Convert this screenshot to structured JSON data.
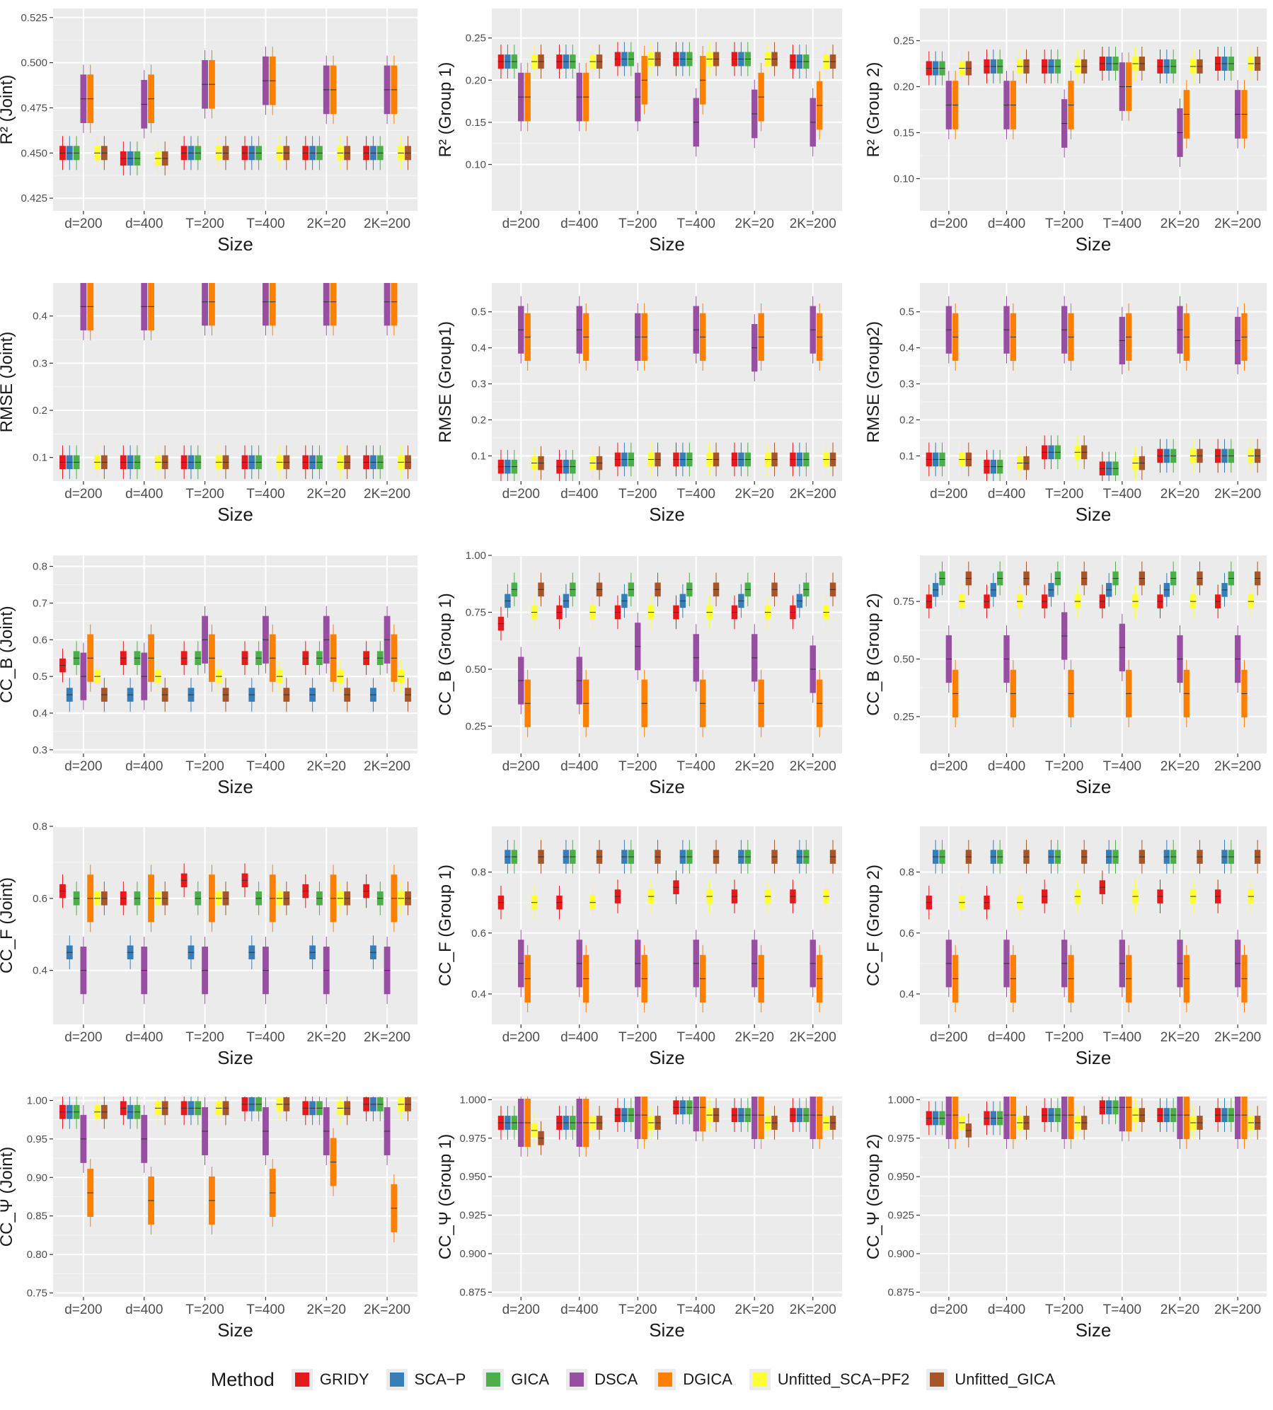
{
  "method_title": "Method",
  "methods": [
    {
      "name": "GRIDY",
      "color": "#e41a1c"
    },
    {
      "name": "SCA−P",
      "color": "#377eb8"
    },
    {
      "name": "GICA",
      "color": "#4daf4a"
    },
    {
      "name": "DSCA",
      "color": "#984ea3"
    },
    {
      "name": "DGICA",
      "color": "#ff7f00"
    },
    {
      "name": "Unfitted_SCA−PF2",
      "color": "#ffff33"
    },
    {
      "name": "Unfitted_GICA",
      "color": "#a65628"
    }
  ],
  "chart_data": [
    {
      "type": "box",
      "ylabel": "R² (Joint)",
      "xlabel": "Size",
      "categories": [
        "d=200",
        "d=400",
        "T=200",
        "T=400",
        "2K=20",
        "2K=200"
      ],
      "ylim": [
        0.418,
        0.53
      ],
      "yticks": [
        0.425,
        0.45,
        0.475,
        0.5,
        0.525
      ],
      "ytick_labels": [
        "0.425",
        "0.450",
        "0.475",
        "0.500",
        "0.525"
      ],
      "medians": [
        [
          0.45,
          0.45,
          0.45,
          0.48,
          0.48,
          0.45,
          0.45
        ],
        [
          0.447,
          0.447,
          0.447,
          0.477,
          0.48,
          0.447,
          0.447
        ],
        [
          0.45,
          0.45,
          0.45,
          0.488,
          0.488,
          0.45,
          0.45
        ],
        [
          0.45,
          0.45,
          0.45,
          0.49,
          0.49,
          0.45,
          0.45
        ],
        [
          0.45,
          0.45,
          0.45,
          0.485,
          0.485,
          0.45,
          0.45
        ],
        [
          0.45,
          0.45,
          0.45,
          0.485,
          0.485,
          0.45,
          0.45
        ]
      ]
    },
    {
      "type": "box",
      "ylabel": "R² (Group 1)",
      "xlabel": "Size",
      "categories": [
        "d=200",
        "d=400",
        "T=200",
        "T=400",
        "2K=20",
        "2K=200"
      ],
      "ylim": [
        0.045,
        0.285
      ],
      "yticks": [
        0.1,
        0.15,
        0.2,
        0.25
      ],
      "ytick_labels": [
        "0.10",
        "0.15",
        "0.20",
        "0.25"
      ],
      "medians": [
        [
          0.222,
          0.222,
          0.222,
          0.18,
          0.18,
          0.222,
          0.222
        ],
        [
          0.222,
          0.222,
          0.222,
          0.18,
          0.18,
          0.222,
          0.222
        ],
        [
          0.225,
          0.225,
          0.225,
          0.18,
          0.2,
          0.225,
          0.225
        ],
        [
          0.225,
          0.225,
          0.225,
          0.15,
          0.2,
          0.225,
          0.225
        ],
        [
          0.225,
          0.225,
          0.225,
          0.16,
          0.18,
          0.225,
          0.225
        ],
        [
          0.222,
          0.222,
          0.222,
          0.15,
          0.17,
          0.222,
          0.222
        ]
      ]
    },
    {
      "type": "box",
      "ylabel": "R² (Group 2)",
      "xlabel": "Size",
      "categories": [
        "d=200",
        "d=400",
        "T=200",
        "T=400",
        "2K=20",
        "2K=200"
      ],
      "ylim": [
        0.065,
        0.285
      ],
      "yticks": [
        0.1,
        0.15,
        0.2,
        0.25
      ],
      "ytick_labels": [
        "0.10",
        "0.15",
        "0.20",
        "0.25"
      ],
      "medians": [
        [
          0.22,
          0.22,
          0.22,
          0.18,
          0.18,
          0.22,
          0.22
        ],
        [
          0.222,
          0.222,
          0.222,
          0.18,
          0.18,
          0.222,
          0.222
        ],
        [
          0.222,
          0.222,
          0.222,
          0.16,
          0.18,
          0.222,
          0.222
        ],
        [
          0.225,
          0.225,
          0.225,
          0.2,
          0.2,
          0.225,
          0.225
        ],
        [
          0.222,
          0.222,
          0.222,
          0.15,
          0.17,
          0.222,
          0.222
        ],
        [
          0.225,
          0.225,
          0.225,
          0.17,
          0.17,
          0.225,
          0.225
        ]
      ]
    },
    {
      "type": "box",
      "ylabel": "RMSE (Joint)",
      "xlabel": "Size",
      "categories": [
        "d=200",
        "d=400",
        "T=200",
        "T=400",
        "2K=20",
        "2K=200"
      ],
      "ylim": [
        0.05,
        0.47
      ],
      "yticks": [
        0.1,
        0.2,
        0.3,
        0.4
      ],
      "ytick_labels": [
        "0.1",
        "0.2",
        "0.3",
        "0.4"
      ],
      "medians": [
        [
          0.09,
          0.09,
          0.09,
          0.42,
          0.42,
          0.09,
          0.09
        ],
        [
          0.09,
          0.09,
          0.09,
          0.42,
          0.42,
          0.09,
          0.09
        ],
        [
          0.09,
          0.09,
          0.09,
          0.43,
          0.43,
          0.09,
          0.09
        ],
        [
          0.09,
          0.09,
          0.09,
          0.43,
          0.43,
          0.09,
          0.09
        ],
        [
          0.09,
          0.09,
          0.09,
          0.43,
          0.43,
          0.09,
          0.09
        ],
        [
          0.09,
          0.09,
          0.09,
          0.43,
          0.43,
          0.09,
          0.09
        ]
      ]
    },
    {
      "type": "box",
      "ylabel": "RMSE (Group1)",
      "xlabel": "Size",
      "categories": [
        "d=200",
        "d=400",
        "T=200",
        "T=400",
        "2K=20",
        "2K=200"
      ],
      "ylim": [
        0.03,
        0.58
      ],
      "yticks": [
        0.1,
        0.2,
        0.3,
        0.4,
        0.5
      ],
      "ytick_labels": [
        "0.1",
        "0.2",
        "0.3",
        "0.4",
        "0.5"
      ],
      "medians": [
        [
          0.07,
          0.07,
          0.07,
          0.45,
          0.43,
          0.08,
          0.08
        ],
        [
          0.07,
          0.07,
          0.07,
          0.45,
          0.43,
          0.08,
          0.08
        ],
        [
          0.09,
          0.09,
          0.09,
          0.43,
          0.43,
          0.09,
          0.09
        ],
        [
          0.09,
          0.09,
          0.09,
          0.45,
          0.43,
          0.09,
          0.09
        ],
        [
          0.09,
          0.09,
          0.09,
          0.4,
          0.43,
          0.09,
          0.09
        ],
        [
          0.09,
          0.09,
          0.09,
          0.45,
          0.43,
          0.09,
          0.09
        ]
      ]
    },
    {
      "type": "box",
      "ylabel": "RMSE (Group2)",
      "xlabel": "Size",
      "categories": [
        "d=200",
        "d=400",
        "T=200",
        "T=400",
        "2K=20",
        "2K=200"
      ],
      "ylim": [
        0.03,
        0.58
      ],
      "yticks": [
        0.1,
        0.2,
        0.3,
        0.4,
        0.5
      ],
      "ytick_labels": [
        "0.1",
        "0.2",
        "0.3",
        "0.4",
        "0.5"
      ],
      "medians": [
        [
          0.09,
          0.09,
          0.09,
          0.45,
          0.43,
          0.09,
          0.09
        ],
        [
          0.07,
          0.07,
          0.07,
          0.45,
          0.43,
          0.08,
          0.08
        ],
        [
          0.11,
          0.11,
          0.11,
          0.45,
          0.43,
          0.11,
          0.11
        ],
        [
          0.065,
          0.065,
          0.065,
          0.42,
          0.43,
          0.08,
          0.08
        ],
        [
          0.1,
          0.1,
          0.1,
          0.45,
          0.43,
          0.1,
          0.1
        ],
        [
          0.1,
          0.1,
          0.1,
          0.42,
          0.43,
          0.1,
          0.1
        ]
      ]
    },
    {
      "type": "box",
      "ylabel": "CC_B (Joint)",
      "xlabel": "Size",
      "categories": [
        "d=200",
        "d=400",
        "T=200",
        "T=400",
        "2K=20",
        "2K=200"
      ],
      "ylim": [
        0.29,
        0.83
      ],
      "yticks": [
        0.3,
        0.4,
        0.5,
        0.6,
        0.7,
        0.8
      ],
      "ytick_labels": [
        "0.3",
        "0.4",
        "0.5",
        "0.6",
        "0.7",
        "0.8"
      ],
      "medians": [
        [
          0.53,
          0.45,
          0.55,
          0.5,
          0.55,
          0.5,
          0.45
        ],
        [
          0.55,
          0.45,
          0.55,
          0.5,
          0.55,
          0.5,
          0.45
        ],
        [
          0.55,
          0.45,
          0.55,
          0.6,
          0.55,
          0.5,
          0.45
        ],
        [
          0.55,
          0.45,
          0.55,
          0.6,
          0.55,
          0.5,
          0.45
        ],
        [
          0.55,
          0.45,
          0.55,
          0.6,
          0.55,
          0.5,
          0.45
        ],
        [
          0.55,
          0.45,
          0.55,
          0.6,
          0.55,
          0.5,
          0.45
        ]
      ]
    },
    {
      "type": "box",
      "ylabel": "CC_B (Group 1)",
      "xlabel": "Size",
      "categories": [
        "d=200",
        "d=400",
        "T=200",
        "T=400",
        "2K=20",
        "2K=200"
      ],
      "ylim": [
        0.13,
        1.0
      ],
      "yticks": [
        0.25,
        0.5,
        0.75,
        1.0
      ],
      "ytick_labels": [
        "0.25",
        "0.50",
        "0.75",
        "1.00"
      ],
      "medians": [
        [
          0.7,
          0.8,
          0.85,
          0.45,
          0.35,
          0.75,
          0.85
        ],
        [
          0.75,
          0.8,
          0.85,
          0.45,
          0.35,
          0.75,
          0.85
        ],
        [
          0.75,
          0.8,
          0.85,
          0.6,
          0.35,
          0.75,
          0.85
        ],
        [
          0.75,
          0.8,
          0.85,
          0.55,
          0.35,
          0.75,
          0.85
        ],
        [
          0.75,
          0.8,
          0.85,
          0.55,
          0.35,
          0.75,
          0.85
        ],
        [
          0.75,
          0.8,
          0.85,
          0.5,
          0.35,
          0.75,
          0.85
        ]
      ]
    },
    {
      "type": "box",
      "ylabel": "CC_B (Group 2)",
      "xlabel": "Size",
      "categories": [
        "d=200",
        "d=400",
        "T=200",
        "T=400",
        "2K=20",
        "2K=200"
      ],
      "ylim": [
        0.09,
        0.95
      ],
      "yticks": [
        0.25,
        0.5,
        0.75
      ],
      "ytick_labels": [
        "0.25",
        "0.50",
        "0.75"
      ],
      "medians": [
        [
          0.75,
          0.8,
          0.85,
          0.5,
          0.35,
          0.75,
          0.85
        ],
        [
          0.75,
          0.8,
          0.85,
          0.5,
          0.35,
          0.75,
          0.85
        ],
        [
          0.75,
          0.8,
          0.85,
          0.6,
          0.35,
          0.75,
          0.85
        ],
        [
          0.75,
          0.8,
          0.85,
          0.55,
          0.35,
          0.75,
          0.85
        ],
        [
          0.75,
          0.8,
          0.85,
          0.5,
          0.35,
          0.75,
          0.85
        ],
        [
          0.75,
          0.8,
          0.85,
          0.5,
          0.35,
          0.75,
          0.85
        ]
      ]
    },
    {
      "type": "box",
      "ylabel": "CC_F (Joint)",
      "xlabel": "Size",
      "categories": [
        "d=200",
        "d=400",
        "T=200",
        "T=400",
        "2K=20",
        "2K=200"
      ],
      "ylim": [
        0.25,
        0.8
      ],
      "yticks": [
        0.4,
        0.6,
        0.8
      ],
      "ytick_labels": [
        "0.4",
        "0.6",
        "0.8"
      ],
      "medians": [
        [
          0.62,
          0.45,
          0.6,
          0.4,
          0.6,
          0.6,
          0.6
        ],
        [
          0.6,
          0.45,
          0.6,
          0.4,
          0.6,
          0.6,
          0.6
        ],
        [
          0.65,
          0.45,
          0.6,
          0.4,
          0.6,
          0.6,
          0.6
        ],
        [
          0.65,
          0.45,
          0.6,
          0.4,
          0.6,
          0.6,
          0.6
        ],
        [
          0.62,
          0.45,
          0.6,
          0.4,
          0.6,
          0.6,
          0.6
        ],
        [
          0.62,
          0.45,
          0.6,
          0.4,
          0.6,
          0.6,
          0.6
        ]
      ]
    },
    {
      "type": "box",
      "ylabel": "CC_F (Group 1)",
      "xlabel": "Size",
      "categories": [
        "d=200",
        "d=400",
        "T=200",
        "T=400",
        "2K=20",
        "2K=200"
      ],
      "ylim": [
        0.3,
        0.95
      ],
      "yticks": [
        0.4,
        0.6,
        0.8
      ],
      "ytick_labels": [
        "0.4",
        "0.6",
        "0.8"
      ],
      "medians": [
        [
          0.7,
          0.85,
          0.85,
          0.5,
          0.45,
          0.7,
          0.85
        ],
        [
          0.7,
          0.85,
          0.85,
          0.5,
          0.45,
          0.7,
          0.85
        ],
        [
          0.72,
          0.85,
          0.85,
          0.5,
          0.45,
          0.72,
          0.85
        ],
        [
          0.75,
          0.85,
          0.85,
          0.5,
          0.45,
          0.72,
          0.85
        ],
        [
          0.72,
          0.85,
          0.85,
          0.5,
          0.45,
          0.72,
          0.85
        ],
        [
          0.72,
          0.85,
          0.85,
          0.5,
          0.45,
          0.72,
          0.85
        ]
      ]
    },
    {
      "type": "box",
      "ylabel": "CC_F (Group 2)",
      "xlabel": "Size",
      "categories": [
        "d=200",
        "d=400",
        "T=200",
        "T=400",
        "2K=20",
        "2K=200"
      ],
      "ylim": [
        0.3,
        0.95
      ],
      "yticks": [
        0.4,
        0.6,
        0.8
      ],
      "ytick_labels": [
        "0.4",
        "0.6",
        "0.8"
      ],
      "medians": [
        [
          0.7,
          0.85,
          0.85,
          0.5,
          0.45,
          0.7,
          0.85
        ],
        [
          0.7,
          0.85,
          0.85,
          0.5,
          0.45,
          0.7,
          0.85
        ],
        [
          0.72,
          0.85,
          0.85,
          0.5,
          0.45,
          0.72,
          0.85
        ],
        [
          0.75,
          0.85,
          0.85,
          0.5,
          0.45,
          0.72,
          0.85
        ],
        [
          0.72,
          0.85,
          0.85,
          0.5,
          0.45,
          0.72,
          0.85
        ],
        [
          0.72,
          0.85,
          0.85,
          0.5,
          0.45,
          0.72,
          0.85
        ]
      ]
    },
    {
      "type": "box",
      "ylabel": "CC_Ψ (Joint)",
      "xlabel": "Size",
      "categories": [
        "d=200",
        "d=400",
        "T=200",
        "T=400",
        "2K=20",
        "2K=200"
      ],
      "ylim": [
        0.745,
        1.005
      ],
      "yticks": [
        0.75,
        0.8,
        0.85,
        0.9,
        0.95,
        1.0
      ],
      "ytick_labels": [
        "0.75",
        "0.80",
        "0.85",
        "0.90",
        "0.95",
        "1.00"
      ],
      "medians": [
        [
          0.985,
          0.985,
          0.985,
          0.95,
          0.88,
          0.985,
          0.985
        ],
        [
          0.99,
          0.985,
          0.985,
          0.95,
          0.87,
          0.99,
          0.99
        ],
        [
          0.99,
          0.99,
          0.99,
          0.96,
          0.87,
          0.99,
          0.99
        ],
        [
          0.995,
          0.995,
          0.995,
          0.96,
          0.88,
          0.995,
          0.995
        ],
        [
          0.99,
          0.99,
          0.99,
          0.96,
          0.92,
          0.99,
          0.99
        ],
        [
          0.995,
          0.995,
          0.995,
          0.96,
          0.86,
          0.995,
          0.995
        ]
      ]
    },
    {
      "type": "box",
      "ylabel": "CC_Ψ (Group 1)",
      "xlabel": "Size",
      "categories": [
        "d=200",
        "d=400",
        "T=200",
        "T=400",
        "2K=20",
        "2K=200"
      ],
      "ylim": [
        0.872,
        1.002
      ],
      "yticks": [
        0.875,
        0.9,
        0.925,
        0.95,
        0.975,
        1.0
      ],
      "ytick_labels": [
        "0.875",
        "0.900",
        "0.925",
        "0.950",
        "0.975",
        "1.000"
      ],
      "medians": [
        [
          0.985,
          0.985,
          0.985,
          0.985,
          0.985,
          0.98,
          0.975
        ],
        [
          0.985,
          0.985,
          0.985,
          0.985,
          0.985,
          0.985,
          0.985
        ],
        [
          0.99,
          0.99,
          0.99,
          0.99,
          0.99,
          0.985,
          0.985
        ],
        [
          0.995,
          0.995,
          0.995,
          0.995,
          0.995,
          0.99,
          0.99
        ],
        [
          0.99,
          0.99,
          0.99,
          0.99,
          0.99,
          0.985,
          0.985
        ],
        [
          0.99,
          0.99,
          0.99,
          0.99,
          0.99,
          0.985,
          0.985
        ]
      ]
    },
    {
      "type": "box",
      "ylabel": "CC_Ψ (Group 2)",
      "xlabel": "Size",
      "categories": [
        "d=200",
        "d=400",
        "T=200",
        "T=400",
        "2K=20",
        "2K=200"
      ],
      "ylim": [
        0.872,
        1.002
      ],
      "yticks": [
        0.875,
        0.9,
        0.925,
        0.95,
        0.975,
        1.0
      ],
      "ytick_labels": [
        "0.875",
        "0.900",
        "0.925",
        "0.950",
        "0.975",
        "1.000"
      ],
      "medians": [
        [
          0.988,
          0.988,
          0.988,
          0.99,
          0.99,
          0.985,
          0.98
        ],
        [
          0.988,
          0.988,
          0.988,
          0.99,
          0.99,
          0.985,
          0.985
        ],
        [
          0.99,
          0.99,
          0.99,
          0.99,
          0.99,
          0.985,
          0.985
        ],
        [
          0.995,
          0.995,
          0.995,
          0.995,
          0.995,
          0.99,
          0.99
        ],
        [
          0.99,
          0.99,
          0.99,
          0.99,
          0.99,
          0.985,
          0.985
        ],
        [
          0.99,
          0.99,
          0.99,
          0.99,
          0.99,
          0.985,
          0.985
        ]
      ]
    }
  ]
}
